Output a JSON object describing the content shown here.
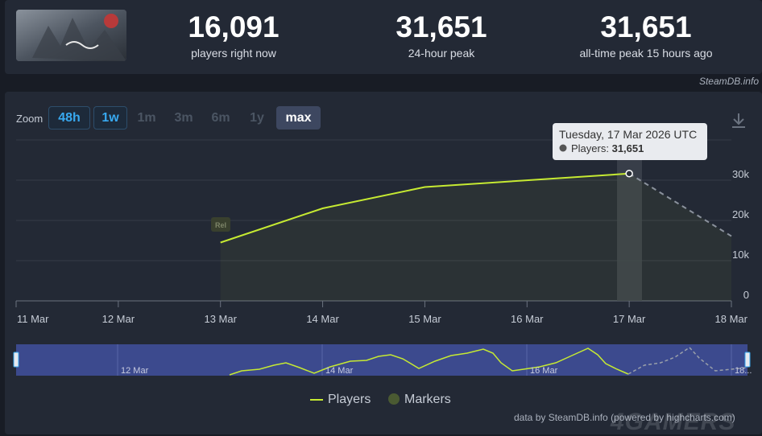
{
  "stats": [
    {
      "value": "16,091",
      "label": "players right now"
    },
    {
      "value": "31,651",
      "label": "24-hour peak"
    },
    {
      "value": "31,651",
      "label": "all-time peak 15 hours ago"
    }
  ],
  "credit": "SteamDB.info",
  "zoom": {
    "label": "Zoom",
    "options": [
      "48h",
      "1w",
      "1m",
      "3m",
      "6m",
      "1y",
      "max"
    ],
    "selected": "max"
  },
  "tooltip": {
    "date": "Tuesday, 17 Mar 2026 UTC",
    "series": "Players",
    "value": "31,651"
  },
  "marker_label": "Rel",
  "legend": {
    "players": "Players",
    "markers": "Markers"
  },
  "footer": "data by SteamDB.info (powered by highcharts.com)",
  "watermark": "4GAMERS",
  "colors": {
    "line": "#c6ea32",
    "accent": "#38a9f0",
    "background": "#181c25",
    "panel": "#232935",
    "navigator": "#3c4a8e"
  },
  "chart_data": {
    "type": "line",
    "x_ticks": [
      "11 Mar",
      "12 Mar",
      "13 Mar",
      "14 Mar",
      "15 Mar",
      "16 Mar",
      "17 Mar",
      "18 Mar"
    ],
    "y_ticks": [
      "0",
      "10k",
      "20k",
      "30k"
    ],
    "ylim": [
      0,
      40000
    ],
    "series": [
      {
        "name": "Players",
        "points": [
          [
            "13 Mar",
            14500
          ],
          [
            "14 Mar",
            23000
          ],
          [
            "15 Mar",
            28300
          ],
          [
            "17 Mar",
            31651
          ]
        ]
      },
      {
        "name": "Players (live)",
        "dashed": true,
        "points": [
          [
            "17 Mar",
            31651
          ],
          [
            "18 Mar",
            16091
          ]
        ]
      }
    ],
    "navigator_ticks": [
      "12 Mar",
      "14 Mar",
      "16 Mar",
      "18..."
    ],
    "grid": true,
    "legend_position": "bottom"
  }
}
